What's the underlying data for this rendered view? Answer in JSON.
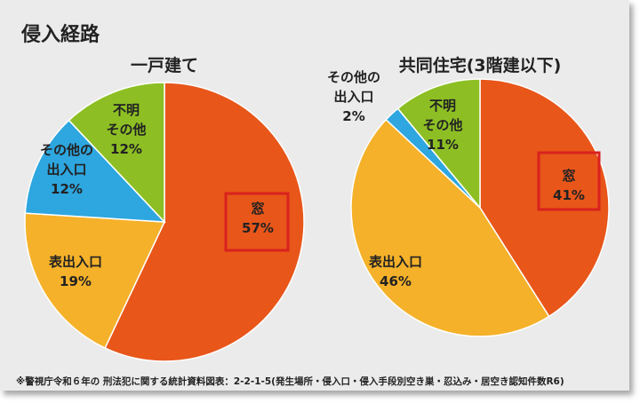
{
  "title": "侵入経路",
  "footnote": "※警視庁令和６年の 刑法犯に関する統計資料図表：2-2-1-5(発生場所・侵入口・侵入手段別空き巣・忍込み・居空き認知件数R6)",
  "chart_data": [
    {
      "type": "pie",
      "title": "一戸建て",
      "slices": [
        {
          "label": [
            "窓"
          ],
          "value": 57,
          "value_label": "57%",
          "color": "#e8561a",
          "highlighted": true
        },
        {
          "label": [
            "表出入口"
          ],
          "value": 19,
          "value_label": "19%",
          "color": "#f5b12a"
        },
        {
          "label": [
            "その他の",
            "出入口"
          ],
          "value": 12,
          "value_label": "12%",
          "color": "#2ea6df"
        },
        {
          "label": [
            "不明",
            "その他"
          ],
          "value": 12,
          "value_label": "12%",
          "color": "#8dbf24"
        }
      ]
    },
    {
      "type": "pie",
      "title": "共同住宅(3階建以下)",
      "slices": [
        {
          "label": [
            "窓"
          ],
          "value": 41,
          "value_label": "41%",
          "color": "#e8561a",
          "highlighted": true
        },
        {
          "label": [
            "表出入口"
          ],
          "value": 46,
          "value_label": "46%",
          "color": "#f5b12a"
        },
        {
          "label": [
            "その他の",
            "出入口"
          ],
          "value": 2,
          "value_label": "2%",
          "color": "#2ea6df"
        },
        {
          "label": [
            "不明",
            "その他"
          ],
          "value": 11,
          "value_label": "11%",
          "color": "#8dbf24"
        }
      ]
    }
  ]
}
